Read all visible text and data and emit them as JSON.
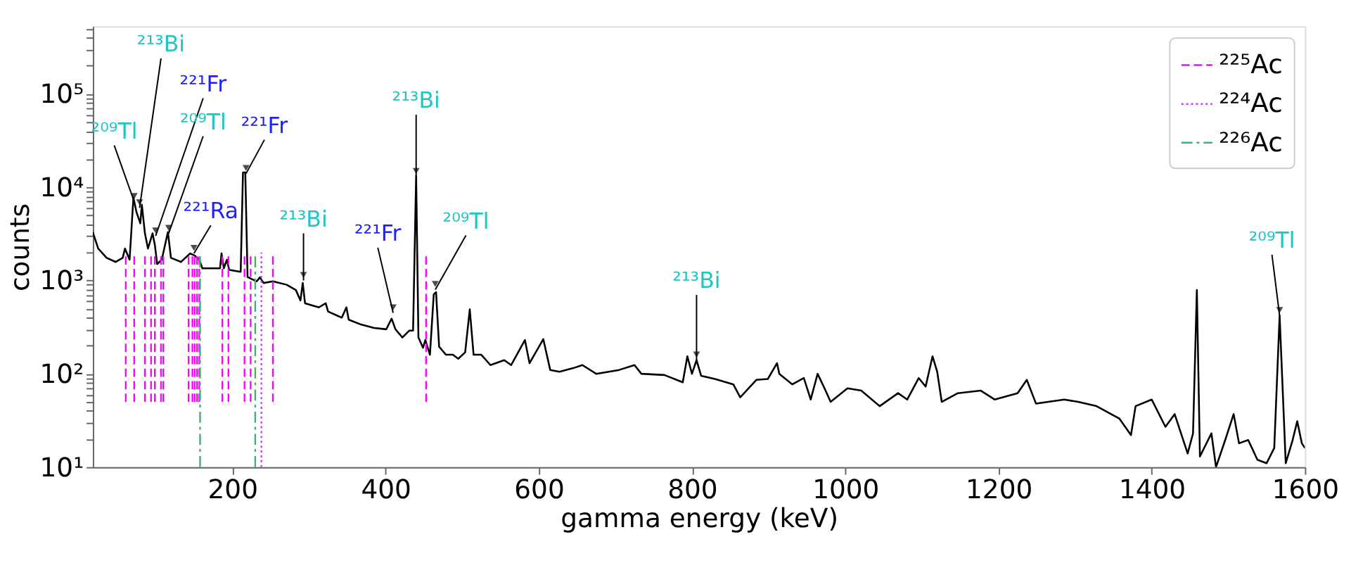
{
  "chart_data": {
    "type": "line",
    "xlabel": "gamma energy (keV)",
    "ylabel": "counts",
    "log": "y",
    "xlim": [
      18,
      1600
    ],
    "ylim": [
      10,
      530000
    ],
    "xticks": [
      200,
      400,
      600,
      800,
      1000,
      1200,
      1400,
      1600
    ],
    "yticks": [
      {
        "value": 10,
        "label": "10¹"
      },
      {
        "value": 20,
        "label": null
      },
      {
        "value": 30,
        "label": null
      },
      {
        "value": 40,
        "label": null
      },
      {
        "value": 50,
        "label": null
      },
      {
        "value": 60,
        "label": null
      },
      {
        "value": 70,
        "label": null
      },
      {
        "value": 80,
        "label": null
      },
      {
        "value": 90,
        "label": null
      },
      {
        "value": 100,
        "label": "10²"
      },
      {
        "value": 200,
        "label": null
      },
      {
        "value": 300,
        "label": null
      },
      {
        "value": 400,
        "label": null
      },
      {
        "value": 500,
        "label": null
      },
      {
        "value": 600,
        "label": null
      },
      {
        "value": 700,
        "label": null
      },
      {
        "value": 800,
        "label": null
      },
      {
        "value": 900,
        "label": null
      },
      {
        "value": 1000,
        "label": "10³"
      },
      {
        "value": 2000,
        "label": null
      },
      {
        "value": 3000,
        "label": null
      },
      {
        "value": 4000,
        "label": null
      },
      {
        "value": 5000,
        "label": null
      },
      {
        "value": 6000,
        "label": null
      },
      {
        "value": 7000,
        "label": null
      },
      {
        "value": 8000,
        "label": null
      },
      {
        "value": 9000,
        "label": null
      },
      {
        "value": 10000,
        "label": "10⁴"
      },
      {
        "value": 20000,
        "label": null
      },
      {
        "value": 30000,
        "label": null
      },
      {
        "value": 40000,
        "label": null
      },
      {
        "value": 50000,
        "label": null
      },
      {
        "value": 60000,
        "label": null
      },
      {
        "value": 70000,
        "label": null
      },
      {
        "value": 80000,
        "label": null
      },
      {
        "value": 90000,
        "label": null
      },
      {
        "value": 100000,
        "label": "10⁵"
      },
      {
        "value": 200000,
        "label": null
      },
      {
        "value": 300000,
        "label": null
      },
      {
        "value": 400000,
        "label": null
      },
      {
        "value": 500000,
        "label": null
      }
    ],
    "grid": false,
    "legend": "top right",
    "marker": "none",
    "series": [
      {
        "color": "#000000",
        "line_style": "solid",
        "x": [
          18,
          25,
          36,
          48,
          57,
          60,
          66,
          71,
          75,
          80,
          82,
          86,
          90,
          96,
          99,
          102,
          108,
          116,
          120,
          133,
          145,
          151,
          157,
          161,
          175,
          184,
          186,
          189,
          193,
          196,
          211,
          214,
          217,
          220,
          226,
          232,
          236,
          241,
          253,
          271,
          283,
          289,
          292,
          295,
          313,
          322,
          325,
          337,
          343,
          349,
          352,
          367,
          385,
          401,
          408,
          413,
          422,
          431,
          436,
          440,
          443,
          449,
          452,
          458,
          463,
          466,
          470,
          479,
          488,
          495,
          504,
          510,
          515,
          525,
          537,
          555,
          564,
          582,
          588,
          606,
          615,
          627,
          645,
          657,
          675,
          705,
          725,
          734,
          764,
          788,
          794,
          800,
          806,
          812,
          830,
          854,
          863,
          884,
          899,
          911,
          914,
          931,
          946,
          955,
          964,
          973,
          981,
          1003,
          1021,
          1045,
          1069,
          1081,
          1096,
          1105,
          1114,
          1120,
          1126,
          1147,
          1177,
          1195,
          1225,
          1237,
          1249,
          1286,
          1304,
          1328,
          1358,
          1373,
          1379,
          1400,
          1418,
          1430,
          1447,
          1454,
          1459,
          1463,
          1478,
          1484,
          1496,
          1507,
          1514,
          1526,
          1538,
          1550,
          1560,
          1567,
          1575,
          1584,
          1590,
          1596,
          1600
        ],
        "values": [
          3300,
          2200,
          1750,
          1580,
          1750,
          2200,
          1670,
          7700,
          5400,
          4100,
          6500,
          3200,
          2200,
          3200,
          2400,
          1500,
          1670,
          3300,
          1750,
          1580,
          1950,
          1850,
          1670,
          1350,
          1350,
          1350,
          1950,
          1350,
          1670,
          1300,
          1240,
          14400,
          14400,
          1090,
          1030,
          980,
          1080,
          940,
          980,
          900,
          790,
          610,
          940,
          570,
          515,
          570,
          465,
          420,
          400,
          515,
          380,
          340,
          310,
          300,
          390,
          300,
          245,
          290,
          290,
          13200,
          245,
          190,
          230,
          160,
          710,
          750,
          195,
          160,
          160,
          145,
          170,
          490,
          160,
          160,
          124,
          140,
          124,
          230,
          130,
          235,
          110,
          105,
          115,
          124,
          100,
          110,
          124,
          100,
          97,
          81,
          154,
          100,
          140,
          95,
          88,
          77,
          56,
          86,
          88,
          130,
          100,
          77,
          90,
          53,
          100,
          70,
          50,
          70,
          66,
          45,
          62,
          53,
          90,
          73,
          154,
          106,
          50,
          62,
          66,
          53,
          62,
          86,
          48,
          53,
          50,
          45,
          33,
          22,
          45,
          53,
          27,
          37,
          14,
          23,
          790,
          13,
          23,
          10,
          19.5,
          37,
          18,
          19.5,
          12,
          11,
          16,
          420,
          11,
          19.5,
          31,
          18,
          16
        ]
      },
      {
        "name": "²²⁵Ac",
        "color": "#ff00ff",
        "line_style": "dashed",
        "x": [
          61,
          61,
          null,
          72,
          72,
          null,
          86,
          86,
          null,
          94,
          94,
          null,
          99,
          99,
          null,
          107,
          107,
          null,
          110,
          110,
          null,
          143,
          143,
          null,
          148,
          148,
          null,
          151,
          151,
          null,
          154,
          154,
          null,
          157,
          157,
          null,
          187,
          187,
          null,
          195,
          195,
          null,
          216,
          216,
          null,
          224,
          224,
          null,
          253,
          253,
          null,
          453,
          453
        ],
        "values": [
          50,
          2000,
          null,
          50,
          2000,
          null,
          50,
          2000,
          null,
          50,
          2000,
          null,
          50,
          2000,
          null,
          50,
          2000,
          null,
          50,
          2000,
          null,
          50,
          2000,
          null,
          50,
          2000,
          null,
          50,
          2000,
          null,
          50,
          2000,
          null,
          50,
          2000,
          null,
          50,
          2000,
          null,
          50,
          2000,
          null,
          50,
          2000,
          null,
          50,
          2000,
          null,
          50,
          2000,
          null,
          50,
          2000
        ]
      },
      {
        "name": "²²⁴Ac",
        "color": "#bf40ff",
        "line_style": "dotted",
        "x": [
          238,
          238
        ],
        "values": [
          10,
          2000
        ]
      },
      {
        "name": "²²⁶Ac",
        "color": "#3cb371",
        "line_style": "dashdot",
        "x": [
          158,
          158,
          null,
          230,
          230
        ],
        "values": [
          10,
          2000,
          null,
          10,
          2000
        ]
      }
    ],
    "annotations": [
      {
        "text": "²⁰⁹Tl",
        "x": 72,
        "y": 7000
      },
      {
        "text": "²¹³Bi",
        "x": 79,
        "y": 6000
      },
      {
        "text": "²²¹Fr",
        "x": 100,
        "y": 3000
      },
      {
        "text": "²⁰⁹Tl",
        "x": 117,
        "y": 3200
      },
      {
        "text": "²²¹Ra",
        "x": 150,
        "y": 1950
      },
      {
        "text": "²²¹Fr",
        "x": 218,
        "y": 14000
      },
      {
        "text": "²¹³Bi",
        "x": 293,
        "y": 1000
      },
      {
        "text": "²²¹Fr",
        "x": 410,
        "y": 450
      },
      {
        "text": "²¹³Bi",
        "x": 440,
        "y": 13000
      },
      {
        "text": "²⁰⁹Tl",
        "x": 465,
        "y": 800
      },
      {
        "text": "²¹³Bi",
        "x": 806,
        "y": 140
      },
      {
        "text": "²⁰⁹Tl",
        "x": 1567,
        "y": 420
      }
    ]
  }
}
